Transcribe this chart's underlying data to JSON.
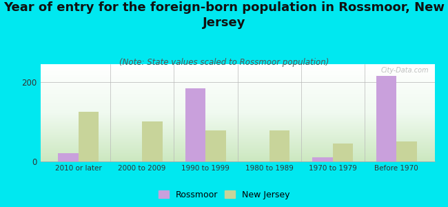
{
  "title": "Year of entry for the foreign-born population in Rossmoor, New\nJersey",
  "subtitle": "(Note: State values scaled to Rossmoor population)",
  "categories": [
    "2010 or later",
    "2000 to 2009",
    "1990 to 1999",
    "1980 to 1989",
    "1970 to 1979",
    "Before 1970"
  ],
  "rossmoor_values": [
    20,
    0,
    185,
    0,
    10,
    215
  ],
  "nj_values": [
    125,
    100,
    78,
    78,
    45,
    50
  ],
  "rossmoor_color": "#c9a0dc",
  "nj_color": "#c8d49a",
  "bg_color": "#00e8f0",
  "ylim": [
    0,
    245
  ],
  "yticks": [
    0,
    200
  ],
  "bar_width": 0.32,
  "title_fontsize": 13,
  "subtitle_fontsize": 8.5,
  "watermark": "City-Data.com"
}
